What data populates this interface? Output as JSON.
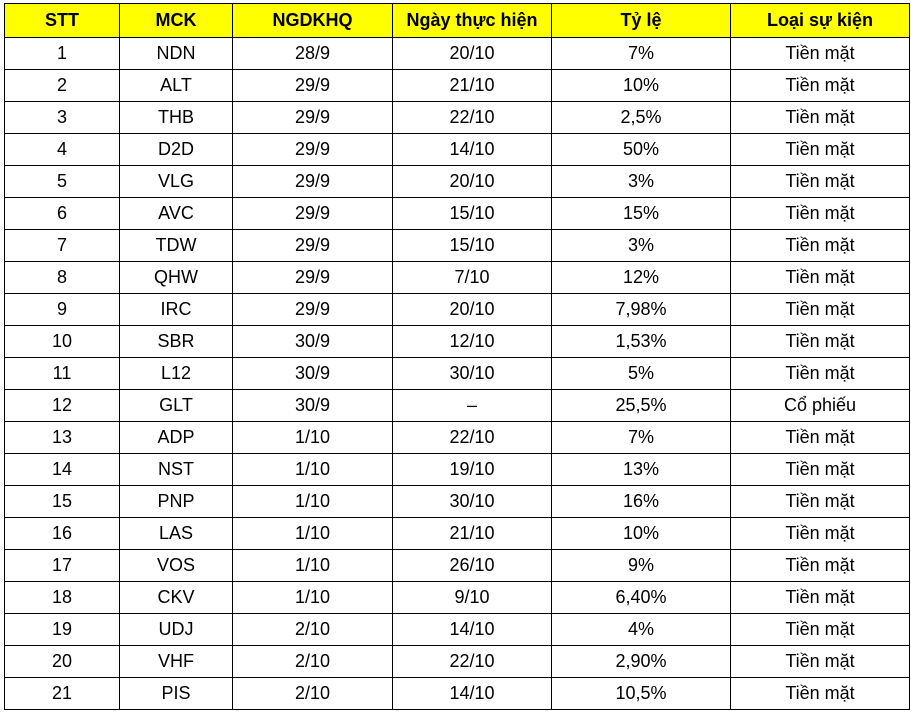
{
  "table": {
    "header": [
      "STT",
      "MCK",
      "NGDKHQ",
      "Ngày thực hiện",
      "Tỷ lệ",
      "Loại sự kiện"
    ],
    "rows": [
      [
        "1",
        "NDN",
        "28/9",
        "20/10",
        "7%",
        "Tiền mặt"
      ],
      [
        "2",
        "ALT",
        "29/9",
        "21/10",
        "10%",
        "Tiền mặt"
      ],
      [
        "3",
        "THB",
        "29/9",
        "22/10",
        "2,5%",
        "Tiền mặt"
      ],
      [
        "4",
        "D2D",
        "29/9",
        "14/10",
        "50%",
        "Tiền mặt"
      ],
      [
        "5",
        "VLG",
        "29/9",
        "20/10",
        "3%",
        "Tiền mặt"
      ],
      [
        "6",
        "AVC",
        "29/9",
        "15/10",
        "15%",
        "Tiền mặt"
      ],
      [
        "7",
        "TDW",
        "29/9",
        "15/10",
        "3%",
        "Tiền mặt"
      ],
      [
        "8",
        "QHW",
        "29/9",
        "7/10",
        "12%",
        "Tiền mặt"
      ],
      [
        "9",
        "IRC",
        "29/9",
        "20/10",
        "7,98%",
        "Tiền mặt"
      ],
      [
        "10",
        "SBR",
        "30/9",
        "12/10",
        "1,53%",
        "Tiền mặt"
      ],
      [
        "11",
        "L12",
        "30/9",
        "30/10",
        "5%",
        "Tiền mặt"
      ],
      [
        "12",
        "GLT",
        "30/9",
        "–",
        "25,5%",
        "Cổ phiếu"
      ],
      [
        "13",
        "ADP",
        "1/10",
        "22/10",
        "7%",
        "Tiền mặt"
      ],
      [
        "14",
        "NST",
        "1/10",
        "19/10",
        "13%",
        "Tiền mặt"
      ],
      [
        "15",
        "PNP",
        "1/10",
        "30/10",
        "16%",
        "Tiền mặt"
      ],
      [
        "16",
        "LAS",
        "1/10",
        "21/10",
        "10%",
        "Tiền mặt"
      ],
      [
        "17",
        "VOS",
        "1/10",
        "26/10",
        "9%",
        "Tiền mặt"
      ],
      [
        "18",
        "CKV",
        "1/10",
        "9/10",
        "6,40%",
        "Tiền mặt"
      ],
      [
        "19",
        "UDJ",
        "2/10",
        "14/10",
        "4%",
        "Tiền mặt"
      ],
      [
        "20",
        "VHF",
        "2/10",
        "22/10",
        "2,90%",
        "Tiền mặt"
      ],
      [
        "21",
        "PIS",
        "2/10",
        "14/10",
        "10,5%",
        "Tiền mặt"
      ]
    ]
  }
}
